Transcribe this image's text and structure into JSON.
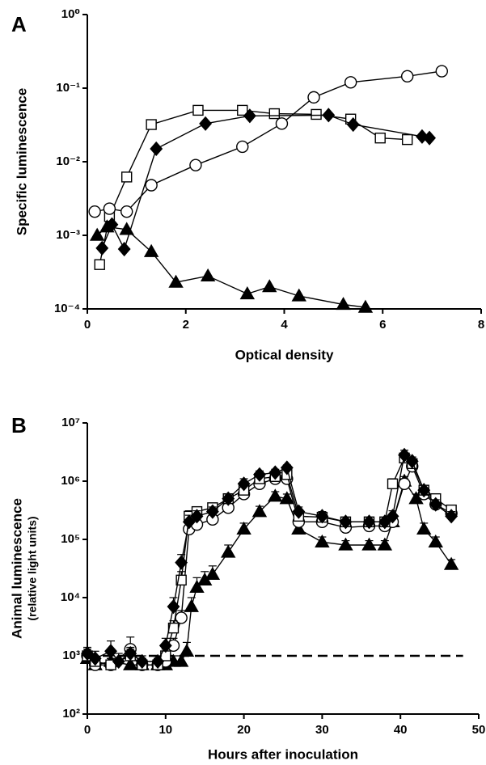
{
  "chart_data": [
    {
      "type": "scatter-line",
      "panel_label": "A",
      "xlabel": "Optical density",
      "ylabel": "Specific luminescence",
      "log_y": true,
      "xlim": [
        0,
        8
      ],
      "xticks": [
        0,
        2,
        4,
        6,
        8
      ],
      "ylim": [
        0.0001,
        1
      ],
      "yticks": [
        {
          "value": 0.0001,
          "label": "10⁻⁴"
        },
        {
          "value": 0.001,
          "label": "10⁻³"
        },
        {
          "value": 0.01,
          "label": "10⁻²"
        },
        {
          "value": 0.1,
          "label": "10⁻¹"
        },
        {
          "value": 1,
          "label": "10⁰"
        }
      ],
      "series": [
        {
          "marker": "square",
          "color": "#000",
          "fill": "#fff",
          "x": [
            0.25,
            0.45,
            0.8,
            1.3,
            2.25,
            3.15,
            3.8,
            4.65,
            5.35,
            5.95,
            6.5
          ],
          "values": [
            0.0004,
            0.0018,
            0.0062,
            0.032,
            0.05,
            0.05,
            0.045,
            0.044,
            0.038,
            0.021,
            0.02
          ]
        },
        {
          "marker": "diamond",
          "color": "#000",
          "fill": "#000",
          "x": [
            0.3,
            0.5,
            0.75,
            1.4,
            2.4,
            3.3,
            4.9,
            5.4,
            6.8,
            6.95
          ],
          "values": [
            0.00067,
            0.0014,
            0.00065,
            0.015,
            0.033,
            0.042,
            0.043,
            0.032,
            0.022,
            0.021
          ]
        },
        {
          "marker": "circle",
          "color": "#000",
          "fill": "#fff",
          "x": [
            0.15,
            0.45,
            0.8,
            1.3,
            2.2,
            3.15,
            3.95,
            4.6,
            5.35,
            6.5,
            7.2
          ],
          "values": [
            0.0021,
            0.0023,
            0.0021,
            0.0048,
            0.009,
            0.016,
            0.033,
            0.075,
            0.12,
            0.145,
            0.17
          ]
        },
        {
          "marker": "triangle",
          "color": "#000",
          "fill": "#000",
          "x": [
            0.2,
            0.4,
            0.8,
            1.3,
            1.8,
            2.45,
            3.25,
            3.7,
            4.3,
            5.2,
            5.65
          ],
          "values": [
            0.001,
            0.0013,
            0.0012,
            0.0006,
            0.00023,
            0.00028,
            0.00016,
            0.0002,
            0.00015,
            0.000115,
            0.000105
          ]
        }
      ]
    },
    {
      "type": "scatter-line",
      "panel_label": "B",
      "xlabel": "Hours after inoculation",
      "ylabel": "Animal luminescence",
      "ylabel_sub": "(relative light units)",
      "log_y": true,
      "xlim": [
        0,
        50
      ],
      "xticks": [
        0,
        10,
        20,
        30,
        40,
        50
      ],
      "ylim": [
        100,
        10000000
      ],
      "yticks": [
        {
          "value": 100,
          "label": "10²"
        },
        {
          "value": 1000,
          "label": "10³"
        },
        {
          "value": 10000,
          "label": "10⁴"
        },
        {
          "value": 100000,
          "label": "10⁵"
        },
        {
          "value": 1000000,
          "label": "10⁶"
        },
        {
          "value": 10000000,
          "label": "10⁷"
        }
      ],
      "reference_line": {
        "value": 1000,
        "x_range": [
          0,
          48
        ],
        "dashed": true
      },
      "series": [
        {
          "marker": "triangle",
          "color": "#000",
          "fill": "#000",
          "x": [
            0,
            1,
            3,
            5.5,
            7,
            9,
            10,
            11,
            12,
            12.7,
            13.3,
            14,
            15,
            16,
            18,
            20,
            22,
            24,
            25.5,
            27,
            30,
            33,
            36,
            38,
            39,
            40.5,
            42,
            43,
            44.5,
            46.5
          ],
          "values": [
            900,
            700,
            800,
            700,
            700,
            700,
            700,
            800,
            800,
            1200,
            7000,
            15000,
            20000,
            25000,
            60000,
            150000,
            300000,
            550000,
            500000,
            150000,
            90000,
            80000,
            80000,
            80000,
            200000,
            1000000,
            500000,
            150000,
            90000,
            37000
          ],
          "errors": [
            200,
            200,
            200,
            200,
            200,
            200,
            200,
            200,
            200,
            500,
            3000,
            7000,
            8000,
            10000,
            20000,
            40000,
            70000,
            110000,
            100000,
            30000,
            20000,
            15000,
            15000,
            15000,
            40000,
            200000,
            100000,
            40000,
            20000,
            8000
          ]
        },
        {
          "marker": "circle",
          "color": "#000",
          "fill": "#fff",
          "x": [
            0,
            1,
            3,
            5.5,
            7,
            9,
            10,
            11,
            12,
            13,
            14,
            16,
            18,
            20,
            22,
            24,
            25.5,
            27,
            30,
            33,
            36,
            38,
            39,
            40.5,
            41.5,
            43,
            44.5,
            46.5
          ],
          "values": [
            1000,
            700,
            700,
            1300,
            700,
            700,
            800,
            1500,
            4500,
            150000,
            180000,
            220000,
            350000,
            600000,
            900000,
            1100000,
            1100000,
            200000,
            200000,
            160000,
            170000,
            170000,
            200000,
            900000,
            1800000,
            600000,
            400000,
            280000
          ],
          "errors": [
            300,
            200,
            200,
            800,
            200,
            200,
            200,
            500,
            1500,
            40000,
            40000,
            50000,
            70000,
            120000,
            180000,
            200000,
            200000,
            40000,
            40000,
            30000,
            30000,
            30000,
            40000,
            200000,
            400000,
            120000,
            80000,
            60000
          ]
        },
        {
          "marker": "square",
          "color": "#000",
          "fill": "#fff",
          "x": [
            0,
            1,
            3,
            5.5,
            7,
            9,
            10,
            11,
            12,
            13,
            14,
            16,
            18,
            20,
            22,
            24,
            25.5,
            27,
            30,
            33,
            36,
            38,
            39,
            40.5,
            41.5,
            43,
            44.5,
            46.5
          ],
          "values": [
            1000,
            800,
            700,
            1000,
            700,
            700,
            1000,
            3000,
            20000,
            250000,
            300000,
            350000,
            500000,
            700000,
            1100000,
            1200000,
            1300000,
            250000,
            240000,
            200000,
            200000,
            200000,
            900000,
            2500000,
            2000000,
            700000,
            500000,
            320000
          ],
          "errors": [
            200,
            200,
            200,
            300,
            200,
            200,
            300,
            1000,
            8000,
            60000,
            60000,
            70000,
            100000,
            150000,
            200000,
            200000,
            200000,
            50000,
            50000,
            40000,
            40000,
            40000,
            200000,
            500000,
            400000,
            150000,
            100000,
            60000
          ]
        },
        {
          "marker": "diamond",
          "color": "#000",
          "fill": "#000",
          "x": [
            0,
            1,
            3,
            4,
            5.5,
            7,
            9,
            10,
            11,
            12,
            13,
            14,
            16,
            18,
            20,
            22,
            24,
            25.5,
            27,
            30,
            33,
            36,
            38,
            39,
            40.5,
            41.5,
            43,
            44.5,
            46.5
          ],
          "values": [
            1100,
            900,
            1200,
            800,
            1100,
            800,
            800,
            1500,
            7000,
            40000,
            200000,
            250000,
            300000,
            500000,
            900000,
            1300000,
            1400000,
            1700000,
            300000,
            250000,
            200000,
            200000,
            200000,
            250000,
            2800000,
            2200000,
            700000,
            400000,
            250000
          ],
          "errors": [
            300,
            300,
            600,
            300,
            300,
            200,
            200,
            500,
            3000,
            15000,
            60000,
            60000,
            60000,
            100000,
            200000,
            200000,
            200000,
            200000,
            60000,
            50000,
            40000,
            40000,
            40000,
            60000,
            600000,
            400000,
            150000,
            80000,
            50000
          ]
        }
      ]
    }
  ]
}
